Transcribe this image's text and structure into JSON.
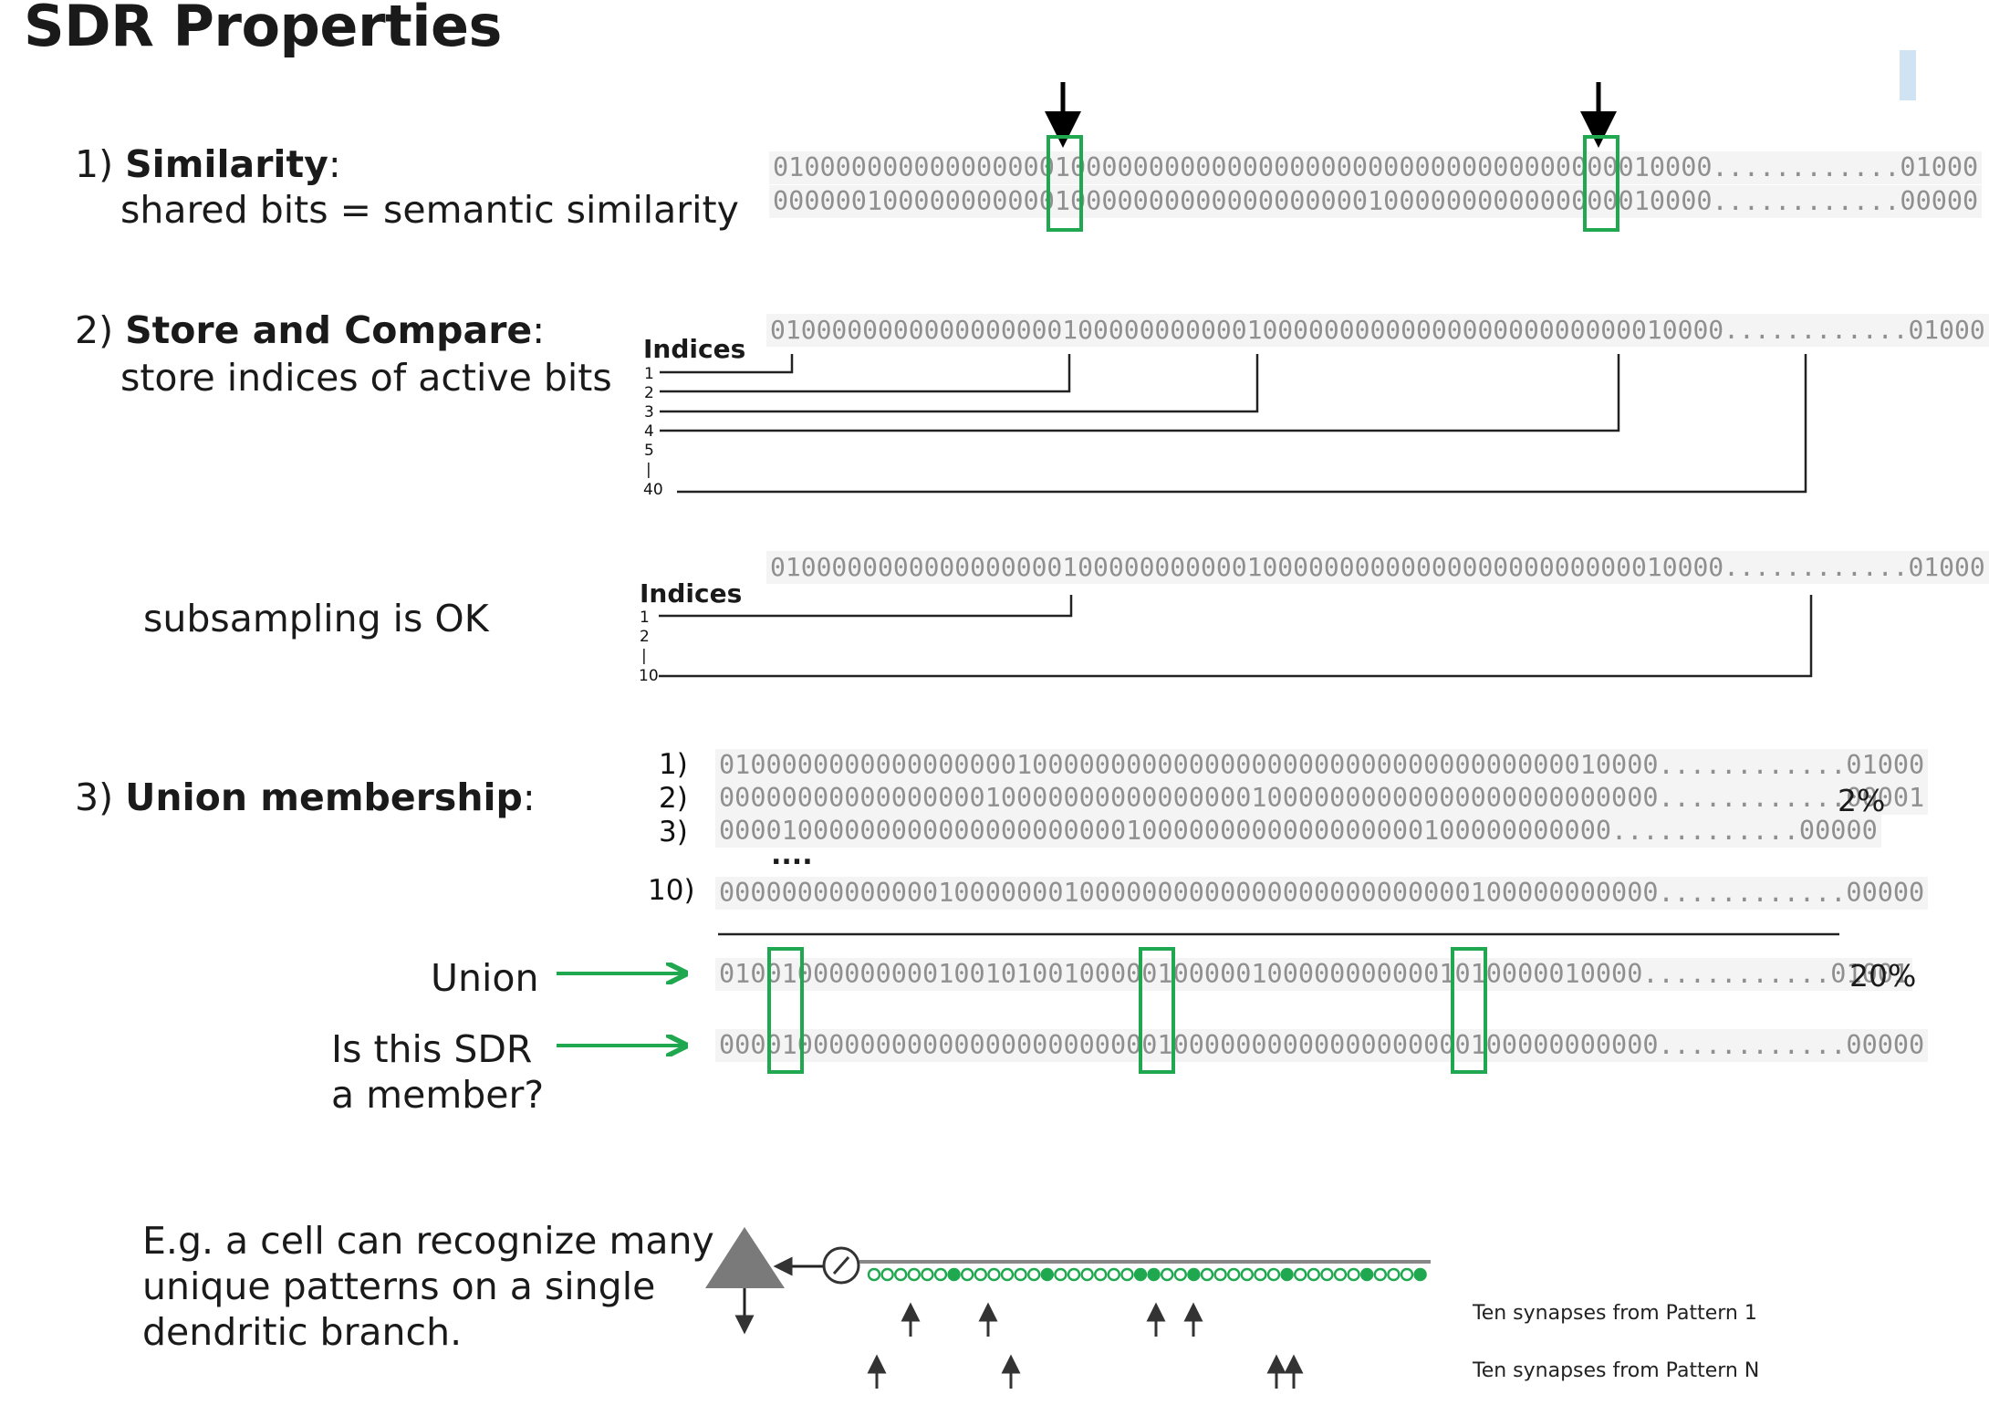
{
  "title": "SDR Properties",
  "similarity": {
    "num": "1) ",
    "name": "Similarity",
    "colon": ":",
    "desc": "shared bits = semantic similarity",
    "rows": [
      "010000000000000000100000000000000000000000000000000000010000............01000",
      "000000100000000000100000000000000000001000000000000000010000............00000"
    ]
  },
  "store": {
    "num": "2) ",
    "name": "Store and Compare",
    "colon": ":",
    "desc": "store indices of active bits",
    "row": "01000000000000000001000000000001000000000000000000000000010000............01000",
    "indices_label": "Indices",
    "indices": [
      "1",
      "2",
      "3",
      "4",
      "5",
      "|",
      "40"
    ]
  },
  "subsample": {
    "desc": "subsampling is OK",
    "row": "01000000000000000001000000000001000000000000000000000000010000............01000",
    "indices_label": "Indices",
    "indices": [
      "1",
      "2",
      "|",
      "10"
    ]
  },
  "union_membership": {
    "num": "3) ",
    "name": "Union membership",
    "colon": ":",
    "rows": [
      {
        "label": "1)",
        "bits": "010000000000000000010000000000000000000000000000000000010000............01000"
      },
      {
        "label": "2)",
        "bits": "000000000000000001000000000000000010000000000000000000000000............00001"
      },
      {
        "label": "3)",
        "bits": "000010000000000000000000001000000000000000000100000000000............00000"
      }
    ],
    "ellipsis": "....",
    "row10": {
      "label": "10)",
      "bits": "000000000000001000000010000000000000000000000000100000000000............00000"
    },
    "pct_pattern": "2%",
    "union_label": "Union",
    "union_bits": "01001000000000100101001000001000001000000000001010000010000............01001",
    "pct_union": "20%",
    "member_label_1": "Is this SDR",
    "member_label_2": "a member?",
    "member_bits": "000010000000000000000000000010000000000000000000100000000000............00000"
  },
  "dendrite": {
    "text_lines": [
      "E.g. a cell can recognize many",
      "unique patterns on a single",
      "dendritic branch."
    ],
    "legend_1": "Ten synapses from Pattern 1",
    "legend_n": "Ten synapses from Pattern N"
  },
  "colors": {
    "highlight": "#1fa84f",
    "arrow": "#1fa84f",
    "bit_off": "#8f8f8f",
    "bit_on": "#111111"
  }
}
